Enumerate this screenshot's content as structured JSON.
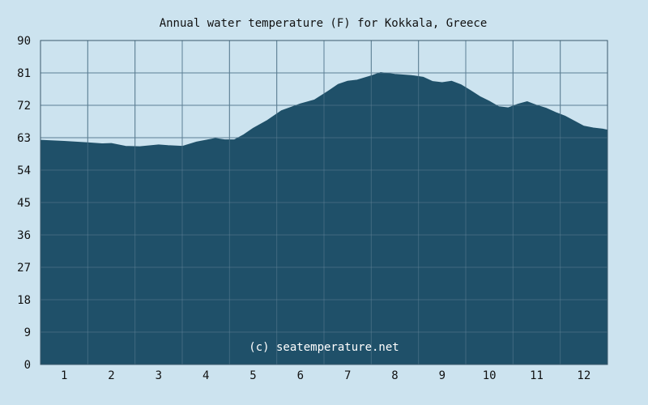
{
  "chart_data": {
    "type": "area",
    "title": "Annual water temperature (F) for Kokkala, Greece",
    "watermark": "(c) seatemperature.net",
    "xlabel": "",
    "ylabel": "",
    "categories": [
      "1",
      "2",
      "3",
      "4",
      "5",
      "6",
      "7",
      "8",
      "9",
      "10",
      "11",
      "12"
    ],
    "ylim": [
      0,
      90
    ],
    "yticks": [
      0,
      9,
      18,
      27,
      36,
      45,
      54,
      63,
      72,
      81,
      90
    ],
    "grid": true,
    "series": [
      {
        "x": [
          0.5,
          1.0,
          1.5,
          1.8,
          2.0,
          2.3,
          2.6,
          3.0,
          3.2,
          3.5,
          3.8,
          4.0,
          4.2,
          4.4,
          4.6,
          4.8,
          5.0,
          5.3,
          5.6,
          6.0,
          6.3,
          6.6,
          6.8,
          7.0,
          7.2,
          7.5,
          7.7,
          8.0,
          8.2,
          8.4,
          8.6,
          8.8,
          9.0,
          9.2,
          9.4,
          9.6,
          9.8,
          10.0,
          10.2,
          10.4,
          10.6,
          10.8,
          11.0,
          11.2,
          11.4,
          11.6,
          11.8,
          12.0,
          12.2,
          12.4,
          12.5
        ],
        "values": [
          62.3,
          62.0,
          61.6,
          61.3,
          61.4,
          60.6,
          60.5,
          61.0,
          60.8,
          60.6,
          61.8,
          62.3,
          62.8,
          62.4,
          62.4,
          63.8,
          65.6,
          67.8,
          70.5,
          72.4,
          73.5,
          76.0,
          77.8,
          78.7,
          79.0,
          80.2,
          81.1,
          80.6,
          80.4,
          80.2,
          79.8,
          78.6,
          78.3,
          78.7,
          77.7,
          76.1,
          74.4,
          73.1,
          71.6,
          71.3,
          72.3,
          73.0,
          72.0,
          71.2,
          70.0,
          69.0,
          67.6,
          66.2,
          65.7,
          65.4,
          65.1
        ]
      }
    ],
    "colors": {
      "background": "#cce3ef",
      "area": "#1f5069",
      "grid": "#5c7f94",
      "axis": "#3b5a6c"
    }
  }
}
